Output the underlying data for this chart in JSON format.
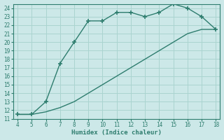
{
  "xlabel": "Humidex (Indice chaleur)",
  "bg_color": "#cce8e8",
  "grid_color": "#aad4d0",
  "line_color": "#2e7d6e",
  "x_upper": [
    4,
    5,
    6,
    7,
    8,
    9,
    10,
    11,
    12,
    13,
    14,
    15,
    16,
    17,
    18
  ],
  "y_upper": [
    11.5,
    11.5,
    13.0,
    17.5,
    20.0,
    22.5,
    22.5,
    23.5,
    23.5,
    23.0,
    23.5,
    24.5,
    24.0,
    23.0,
    21.5
  ],
  "x_lower": [
    4,
    5,
    6,
    7,
    8,
    9,
    10,
    11,
    12,
    13,
    14,
    15,
    16,
    17,
    18
  ],
  "y_lower": [
    11.5,
    11.5,
    11.8,
    12.3,
    13.0,
    14.0,
    15.0,
    16.0,
    17.0,
    18.0,
    19.0,
    20.0,
    21.0,
    21.5,
    21.5
  ],
  "xlim": [
    3.7,
    18.3
  ],
  "ylim": [
    11,
    24.5
  ],
  "xticks": [
    4,
    5,
    6,
    7,
    8,
    9,
    10,
    11,
    12,
    13,
    14,
    15,
    16,
    17,
    18
  ],
  "yticks": [
    11,
    12,
    13,
    14,
    15,
    16,
    17,
    18,
    19,
    20,
    21,
    22,
    23,
    24
  ],
  "tick_fontsize": 5.5,
  "xlabel_fontsize": 6.5,
  "marker": "+",
  "marker_size": 4,
  "linewidth": 1.0
}
